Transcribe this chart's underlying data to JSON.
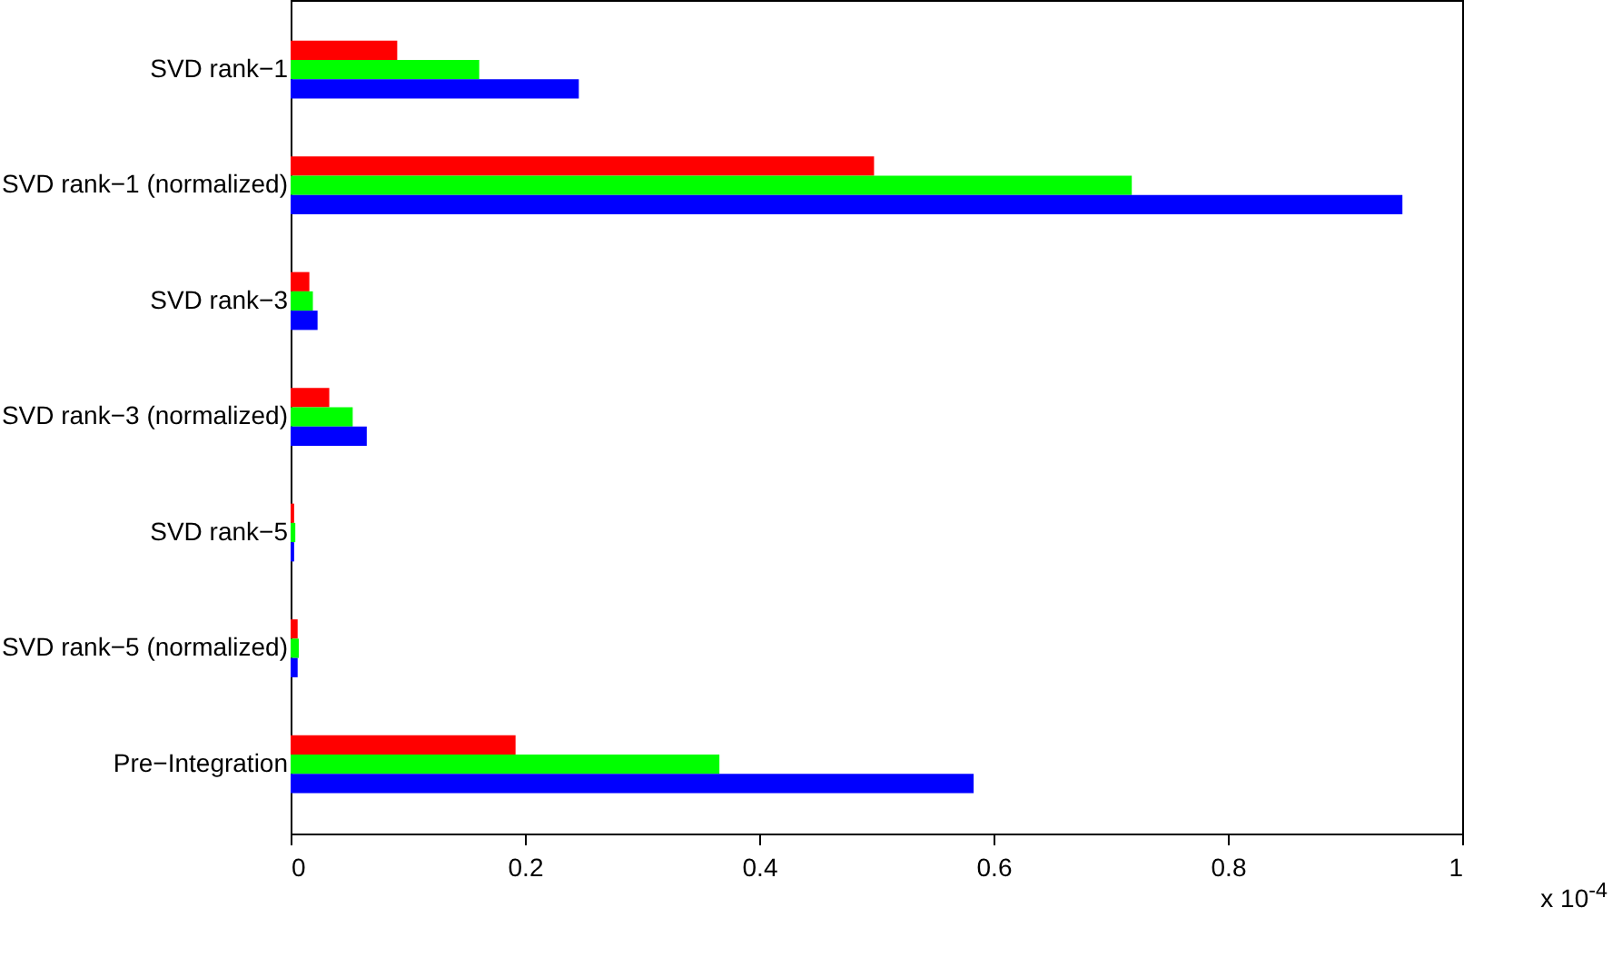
{
  "chart_data": {
    "type": "bar",
    "orientation": "horizontal",
    "categories": [
      "SVD rank−1",
      "SVD rank−1 (normalized)",
      "SVD rank−3",
      "SVD rank−3 (normalized)",
      "SVD rank−5",
      "SVD rank−5 (normalized)",
      "Pre−Integration"
    ],
    "series": [
      {
        "color": "#ff0000",
        "values": [
          0.091,
          0.498,
          0.016,
          0.033,
          0.003,
          0.006,
          0.192
        ]
      },
      {
        "color": "#00ff00",
        "values": [
          0.161,
          0.718,
          0.019,
          0.053,
          0.004,
          0.007,
          0.366
        ]
      },
      {
        "color": "#0000ff",
        "values": [
          0.246,
          0.949,
          0.023,
          0.065,
          0.003,
          0.006,
          0.583
        ]
      }
    ],
    "xlim": [
      0,
      1
    ],
    "xticks": [
      0,
      0.2,
      0.4,
      0.6,
      0.8,
      1
    ],
    "grid": false,
    "legend": false,
    "annotations": [
      "x 10$^{-4}$"
    ]
  }
}
